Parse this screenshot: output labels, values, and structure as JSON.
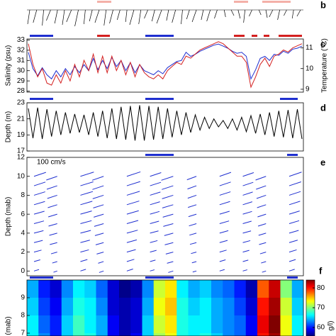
{
  "chart_data": [
    {
      "type": "stick",
      "panel_label": "b",
      "color": "#000000",
      "u": [
        -3,
        -5,
        -2,
        -6,
        -4,
        -3,
        -7,
        -5,
        -2,
        -4,
        -6,
        -3,
        -5,
        -4,
        -2,
        -6,
        -3,
        -5,
        -4,
        -7,
        -3,
        -5,
        -2,
        -4,
        -6,
        -3,
        -5,
        -4,
        2,
        4,
        3,
        -2,
        -4,
        3,
        2,
        -5,
        -3,
        -4,
        -2,
        -5
      ],
      "v": [
        -20,
        -18,
        -22,
        -15,
        -19,
        -21,
        -17,
        -23,
        -20,
        -16,
        -18,
        -22,
        -19,
        -14,
        -17,
        -21,
        -20,
        -12,
        -16,
        -19,
        -15,
        -18,
        -20,
        -13,
        -17,
        -14,
        -16,
        -12,
        -10,
        -8,
        -12,
        -18,
        -9,
        -7,
        -11,
        -10,
        -14,
        -8,
        -12,
        -9
      ]
    },
    {
      "type": "line",
      "panel_label": "c",
      "ylabel": "Salinity (psu)",
      "y2label": "Temperature (°C)",
      "ylim": [
        27.9,
        33.1
      ],
      "yticks": [
        28,
        29,
        30,
        31,
        32,
        33
      ],
      "y2lim": [
        8.86,
        11.43
      ],
      "y2ticks": [
        9,
        10,
        11
      ],
      "series": [
        {
          "color": "#1f2fd0",
          "values": [
            31.8,
            30.2,
            29.5,
            30.3,
            29.6,
            29.2,
            30.0,
            29.4,
            30.2,
            29.6,
            30.4,
            29.8,
            30.6,
            30.0,
            31.2,
            30.1,
            31.0,
            30.2,
            31.3,
            30.4,
            31.0,
            30.0,
            30.8,
            29.8,
            30.6,
            30.0,
            29.8,
            29.6,
            30.0,
            29.7,
            30.3,
            30.6,
            30.9,
            31.0,
            31.8,
            31.4,
            31.6,
            31.9,
            32.1,
            32.3,
            32.5,
            32.6,
            32.4,
            32.2,
            31.9,
            31.7,
            31.8,
            31.4,
            29.2,
            30.1,
            31.2,
            31.4,
            31.0,
            31.6,
            31.5,
            31.9,
            31.7,
            32.1,
            32.2,
            32.4
          ]
        },
        {
          "color": "#d42020",
          "axis": "y2",
          "values": [
            11.2,
            10.2,
            9.6,
            10.0,
            9.3,
            9.2,
            9.7,
            9.3,
            9.9,
            9.4,
            10.2,
            9.6,
            10.4,
            9.9,
            10.7,
            9.8,
            10.6,
            9.8,
            10.6,
            9.9,
            10.4,
            9.7,
            10.3,
            9.6,
            10.2,
            9.8,
            9.6,
            9.5,
            9.7,
            9.5,
            9.9,
            10.1,
            10.3,
            10.2,
            10.6,
            10.5,
            10.7,
            10.9,
            11.0,
            11.1,
            11.2,
            11.3,
            11.2,
            11.0,
            10.8,
            10.6,
            10.6,
            10.3,
            9.1,
            9.6,
            10.2,
            10.5,
            10.1,
            10.6,
            10.7,
            10.9,
            10.8,
            11.0,
            11.1,
            11.2
          ]
        }
      ]
    },
    {
      "type": "line",
      "panel_label": "d",
      "ylabel": "Depth (m)",
      "ylim": [
        17,
        23
      ],
      "yticks": [
        17,
        19,
        21,
        23
      ],
      "series": [
        {
          "color": "#000000",
          "values": [
            22.3,
            18.6,
            22.4,
            18.5,
            22.2,
            18.8,
            22.0,
            19.0,
            21.8,
            19.2,
            21.6,
            19.3,
            21.5,
            19.0,
            21.8,
            18.8,
            22.0,
            18.6,
            22.3,
            18.5,
            22.5,
            18.4,
            22.6,
            18.3,
            22.7,
            18.3,
            22.6,
            18.4,
            22.5,
            18.5,
            22.3,
            18.7,
            22.0,
            19.0,
            21.8,
            19.3,
            21.5,
            19.6,
            21.2,
            19.8,
            21.0,
            20.0,
            20.8,
            19.8,
            21.0,
            19.6,
            21.2,
            19.4,
            21.4,
            19.2,
            21.6,
            19.0,
            21.8,
            18.8,
            22.0,
            18.7,
            22.1,
            18.6,
            22.2,
            18.5
          ]
        }
      ]
    },
    {
      "type": "quiver",
      "panel_label": "e",
      "ylabel": "Depth (mab)",
      "annotation": "100 cm/s",
      "color": "#1f2fd0",
      "ylim": [
        -0.5,
        12
      ],
      "yticks": [
        0,
        2,
        4,
        6,
        8,
        10,
        12
      ],
      "levels": [
        0,
        1,
        2,
        3,
        4,
        5,
        6,
        7,
        8,
        9,
        10
      ],
      "u": [
        [
          20,
          -15,
          22,
          -18,
          25,
          18,
          -20,
          -15,
          20,
          18,
          -16,
          22
        ],
        [
          25,
          -20,
          28,
          -22,
          30,
          22,
          -25,
          -18,
          24,
          22,
          -20,
          26
        ],
        [
          30,
          -25,
          34,
          -28,
          36,
          26,
          -30,
          -22,
          28,
          26,
          -24,
          30
        ],
        [
          35,
          -30,
          38,
          -32,
          40,
          30,
          -34,
          -26,
          32,
          30,
          -28,
          34
        ],
        [
          38,
          -32,
          42,
          -35,
          44,
          34,
          -36,
          -28,
          35,
          33,
          -30,
          38
        ],
        [
          40,
          -35,
          45,
          -38,
          46,
          36,
          -40,
          -30,
          38,
          35,
          -32,
          40
        ],
        [
          42,
          -36,
          46,
          -40,
          48,
          38,
          -42,
          -32,
          40,
          37,
          -34,
          42
        ],
        [
          44,
          -38,
          48,
          -42,
          50,
          40,
          -44,
          -34,
          42,
          38,
          -36,
          44
        ],
        [
          45,
          -40,
          50,
          -44,
          52,
          42,
          -45,
          -35,
          44,
          40,
          -38,
          46
        ],
        [
          46,
          -42,
          52,
          -45,
          54,
          44,
          -46,
          -36,
          45,
          42,
          -40,
          48
        ],
        [
          48,
          -44,
          54,
          -46,
          55,
          45,
          -48,
          -38,
          46,
          44,
          -42,
          50
        ]
      ],
      "v": [
        [
          6,
          -5,
          7,
          -6,
          8,
          5,
          -6,
          -4,
          6,
          5,
          -5,
          7
        ],
        [
          7,
          -6,
          8,
          -7,
          9,
          6,
          -7,
          -5,
          7,
          6,
          -6,
          8
        ],
        [
          8,
          -7,
          9,
          -8,
          10,
          7,
          -8,
          -6,
          8,
          7,
          -7,
          9
        ],
        [
          9,
          -8,
          10,
          -9,
          11,
          8,
          -9,
          -7,
          9,
          8,
          -8,
          10
        ],
        [
          10,
          -9,
          11,
          -10,
          12,
          9,
          -10,
          -8,
          10,
          9,
          -9,
          11
        ],
        [
          11,
          -10,
          12,
          -11,
          13,
          10,
          -11,
          -9,
          11,
          10,
          -10,
          12
        ],
        [
          12,
          -11,
          13,
          -12,
          14,
          11,
          -12,
          -10,
          12,
          11,
          -11,
          13
        ],
        [
          13,
          -12,
          14,
          -13,
          15,
          12,
          -13,
          -11,
          13,
          12,
          -12,
          14
        ],
        [
          14,
          -13,
          15,
          -14,
          16,
          13,
          -14,
          -12,
          14,
          13,
          -13,
          15
        ],
        [
          15,
          -14,
          16,
          -15,
          17,
          14,
          -15,
          -13,
          15,
          14,
          -14,
          16
        ],
        [
          16,
          -15,
          17,
          -16,
          18,
          15,
          -16,
          -14,
          16,
          15,
          -15,
          17
        ]
      ]
    },
    {
      "type": "heatmap",
      "panel_label": "f",
      "ylabel": "(mab)",
      "clabel": "g/l)",
      "ylim": [
        6.84,
        10
      ],
      "yticks": [
        7,
        8,
        9
      ],
      "y": [
        9.5,
        8.5,
        7.5,
        6.5
      ],
      "clim": [
        55.7,
        84
      ],
      "cticks": [
        60,
        70,
        80
      ],
      "z": [
        [
          64,
          60,
          58,
          63,
          66,
          65,
          62,
          58,
          56,
          57,
          63,
          72,
          74,
          66,
          64,
          65,
          63,
          62,
          60,
          57,
          78,
          82,
          70,
          64
        ],
        [
          65,
          61,
          59,
          64,
          67,
          66,
          63,
          58,
          57,
          58,
          64,
          73,
          75,
          67,
          65,
          66,
          64,
          63,
          61,
          58,
          80,
          83,
          72,
          65
        ],
        [
          66,
          62,
          60,
          65,
          68,
          66,
          64,
          59,
          57,
          58,
          65,
          72,
          74,
          67,
          66,
          66,
          64,
          63,
          62,
          59,
          81,
          84,
          73,
          66
        ],
        [
          66,
          63,
          60,
          65,
          68,
          67,
          64,
          59,
          57,
          59,
          65,
          71,
          73,
          67,
          66,
          67,
          65,
          63,
          62,
          59,
          80,
          83,
          73,
          66
        ]
      ]
    }
  ]
}
